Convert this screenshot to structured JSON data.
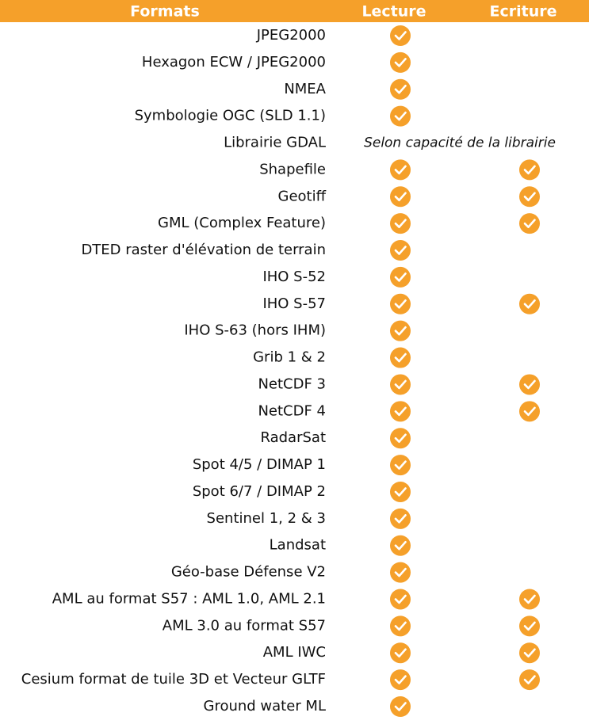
{
  "table": {
    "header": [
      "Formats",
      "Lecture",
      "Ecriture"
    ],
    "rows": [
      {
        "format": "JPEG2000",
        "read": true,
        "write": false
      },
      {
        "format": "Hexagon ECW / JPEG2000",
        "read": true,
        "write": false
      },
      {
        "format": "NMEA",
        "read": true,
        "write": false
      },
      {
        "format": "Symbologie OGC (SLD 1.1)",
        "read": true,
        "write": false
      },
      {
        "format": "Librairie GDAL",
        "note": "Selon capacité de la librairie"
      },
      {
        "format": "Shapefile",
        "read": true,
        "write": true
      },
      {
        "format": "Geotiff",
        "read": true,
        "write": true
      },
      {
        "format": "GML (Complex Feature)",
        "read": true,
        "write": true
      },
      {
        "format": "DTED raster d'élévation de terrain",
        "read": true,
        "write": false
      },
      {
        "format": "IHO S-52",
        "read": true,
        "write": false
      },
      {
        "format": "IHO S-57",
        "read": true,
        "write": true
      },
      {
        "format": "IHO S-63 (hors IHM)",
        "read": true,
        "write": false
      },
      {
        "format": "Grib 1 & 2",
        "read": true,
        "write": false
      },
      {
        "format": "NetCDF 3",
        "read": true,
        "write": true
      },
      {
        "format": "NetCDF 4",
        "read": true,
        "write": true
      },
      {
        "format": "RadarSat",
        "read": true,
        "write": false
      },
      {
        "format": "Spot 4/5 / DIMAP 1",
        "read": true,
        "write": false
      },
      {
        "format": "Spot 6/7 / DIMAP 2",
        "read": true,
        "write": false
      },
      {
        "format": "Sentinel 1, 2 & 3",
        "read": true,
        "write": false
      },
      {
        "format": "Landsat",
        "read": true,
        "write": false
      },
      {
        "format": "Géo-base Défense V2",
        "read": true,
        "write": false
      },
      {
        "format": "AML au format S57 : AML 1.0, AML 2.1",
        "read": true,
        "write": true
      },
      {
        "format": "AML 3.0 au format S57",
        "read": true,
        "write": true
      },
      {
        "format": "AML IWC",
        "read": true,
        "write": true
      },
      {
        "format": "Cesium format de tuile 3D et Vecteur GLTF",
        "read": true,
        "write": true
      },
      {
        "format": "Ground water ML",
        "read": true,
        "write": false
      }
    ]
  }
}
